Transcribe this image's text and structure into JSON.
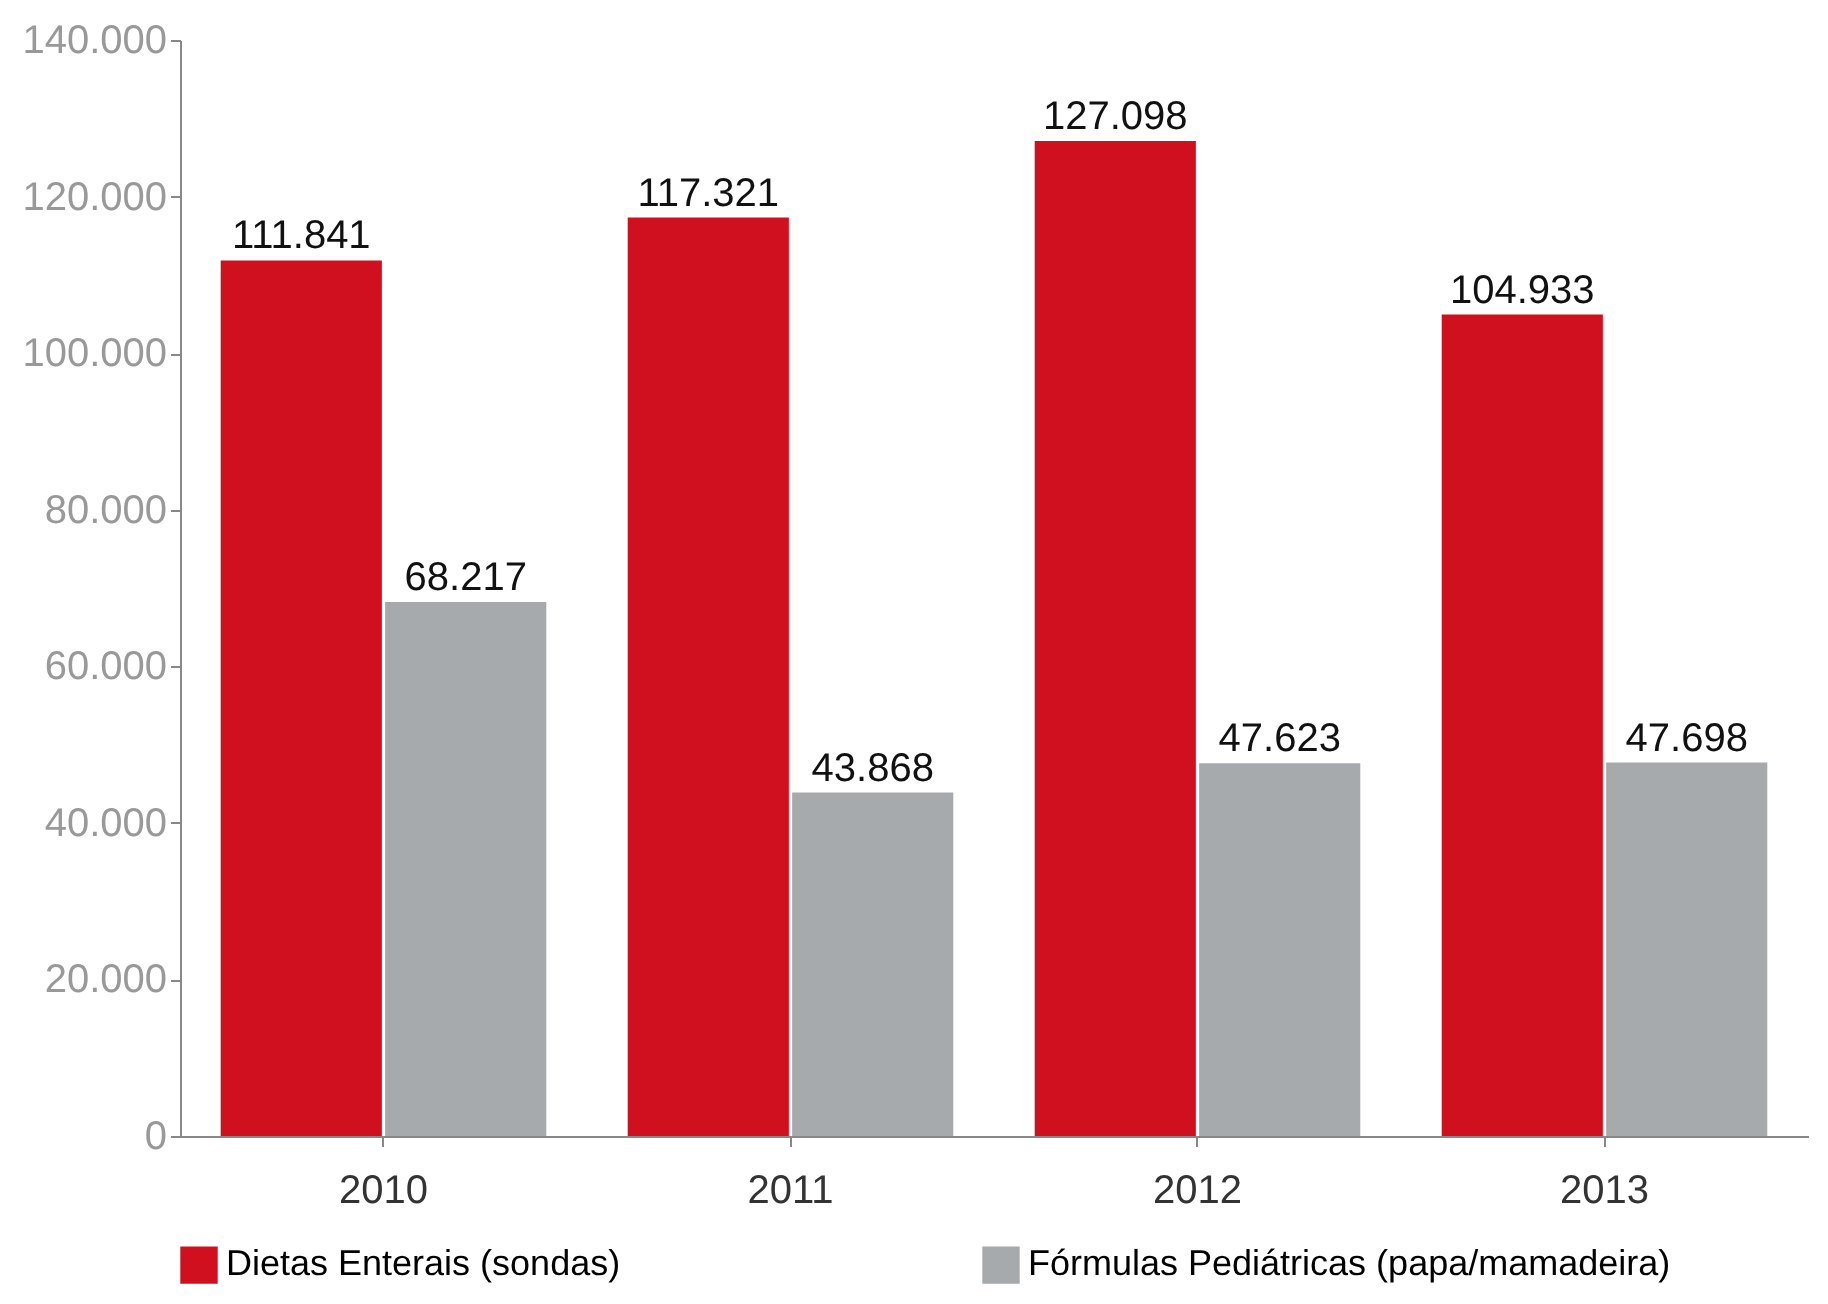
{
  "chart_data": {
    "type": "bar",
    "categories": [
      "2010",
      "2011",
      "2012",
      "2013"
    ],
    "series": [
      {
        "name": "Dietas Enterais (sondas)",
        "color": "#d0101e",
        "values": [
          111841,
          117321,
          127098,
          104933
        ],
        "value_labels": [
          "111.841",
          "117.321",
          "127.098",
          "104.933"
        ]
      },
      {
        "name": "Fórmulas Pediátricas (papa/mamadeira)",
        "color": "#a7aaad",
        "values": [
          68217,
          43868,
          47623,
          47698
        ],
        "value_labels": [
          "68.217",
          "43.868",
          "47.623",
          "47.698"
        ]
      }
    ],
    "ylim": [
      0,
      140000
    ],
    "yticks": [
      {
        "value": 0,
        "label": "0"
      },
      {
        "value": 20000,
        "label": "20.000"
      },
      {
        "value": 40000,
        "label": "40.000"
      },
      {
        "value": 60000,
        "label": "60.000"
      },
      {
        "value": 80000,
        "label": "80.000"
      },
      {
        "value": 100000,
        "label": "100.000"
      },
      {
        "value": 120000,
        "label": "120.000"
      },
      {
        "value": 140000,
        "label": "140.000"
      }
    ],
    "grid": false,
    "legend": "bottom"
  }
}
